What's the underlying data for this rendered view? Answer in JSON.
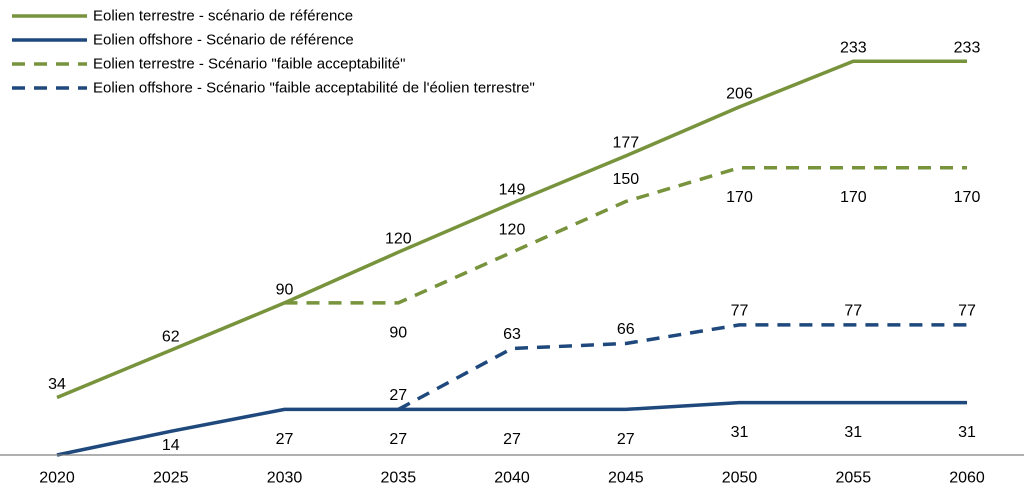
{
  "chart_data": {
    "type": "line",
    "title": "",
    "xlabel": "",
    "ylabel": "",
    "categories": [
      "2020",
      "2025",
      "2030",
      "2035",
      "2040",
      "2045",
      "2050",
      "2055",
      "2060"
    ],
    "ylim": [
      0,
      250
    ],
    "grid": false,
    "legend_position": "top-left",
    "series": [
      {
        "name": "Eolien terrestre - scénario de référence",
        "color": "#77933c",
        "dash": "solid",
        "values": [
          34,
          62,
          90,
          120,
          149,
          177,
          206,
          233,
          233
        ],
        "labels": [
          "34",
          "62",
          "90",
          "120",
          "149",
          "177",
          "206",
          "233",
          "233"
        ]
      },
      {
        "name": "Eolien offshore - Scénario de référence",
        "color": "#1f497d",
        "dash": "solid",
        "values": [
          0,
          14,
          27,
          27,
          27,
          27,
          31,
          31,
          31
        ],
        "labels": [
          null,
          "14",
          "27",
          "27",
          "27",
          "27",
          "31",
          "31",
          "31"
        ]
      },
      {
        "name": "Eolien terrestre - Scénario \"faible acceptabilité\"",
        "color": "#77933c",
        "dash": "dashed",
        "values": [
          null,
          null,
          90,
          90,
          120,
          150,
          170,
          170,
          170
        ],
        "labels": [
          null,
          null,
          null,
          "90",
          "120",
          "150",
          "170",
          "170",
          "170"
        ]
      },
      {
        "name": "Eolien offshore - Scénario \"faible acceptabilité de l'éolien terrestre\"",
        "color": "#1f497d",
        "dash": "dashed",
        "values": [
          null,
          null,
          null,
          27,
          63,
          66,
          77,
          77,
          77
        ],
        "labels": [
          null,
          null,
          null,
          "27",
          "63",
          "66",
          "77",
          "77",
          "77"
        ]
      }
    ]
  }
}
